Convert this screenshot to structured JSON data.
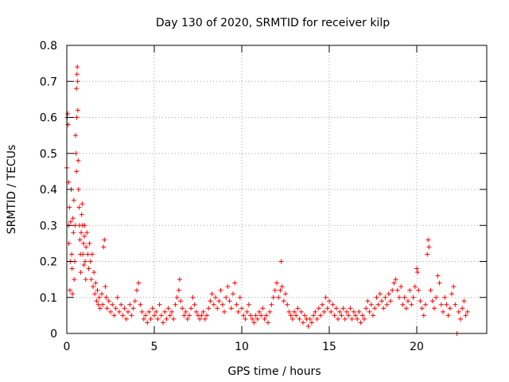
{
  "chart_data": {
    "type": "scatter",
    "title": "Day 130 of 2020, SRMTID for receiver kilp",
    "xlabel": "GPS time / hours",
    "ylabel": "SRMTID / TECUs",
    "xlim": [
      0,
      24
    ],
    "ylim": [
      0,
      0.8
    ],
    "xticks": [
      0,
      5,
      10,
      15,
      20
    ],
    "xtick_labels": [
      "0",
      "5",
      "10",
      "15",
      "20"
    ],
    "yticks": [
      0,
      0.1,
      0.2,
      0.3,
      0.4,
      0.5,
      0.6,
      0.7,
      0.8
    ],
    "ytick_labels": [
      "0",
      "0.1",
      "0.2",
      "0.3",
      "0.4",
      "0.5",
      "0.6",
      "0.7",
      "0.8"
    ],
    "grid": true,
    "marker": "+",
    "color": "#ff0000",
    "series": [
      {
        "name": "SRMTID",
        "points": [
          [
            0.0,
            0.46
          ],
          [
            0.02,
            0.6
          ],
          [
            0.05,
            0.61
          ],
          [
            0.07,
            0.58
          ],
          [
            0.1,
            0.42
          ],
          [
            0.1,
            0.3
          ],
          [
            0.12,
            0.25
          ],
          [
            0.15,
            0.35
          ],
          [
            0.18,
            0.12
          ],
          [
            0.2,
            0.2
          ],
          [
            0.22,
            0.31
          ],
          [
            0.25,
            0.4
          ],
          [
            0.28,
            0.22
          ],
          [
            0.3,
            0.18
          ],
          [
            0.32,
            0.11
          ],
          [
            0.35,
            0.32
          ],
          [
            0.38,
            0.28
          ],
          [
            0.4,
            0.37
          ],
          [
            0.42,
            0.15
          ],
          [
            0.45,
            0.2
          ],
          [
            0.48,
            0.3
          ],
          [
            0.5,
            0.55
          ],
          [
            0.52,
            0.5
          ],
          [
            0.55,
            0.45
          ],
          [
            0.55,
            0.68
          ],
          [
            0.57,
            0.6
          ],
          [
            0.58,
            0.72
          ],
          [
            0.6,
            0.74
          ],
          [
            0.62,
            0.7
          ],
          [
            0.63,
            0.62
          ],
          [
            0.65,
            0.48
          ],
          [
            0.67,
            0.4
          ],
          [
            0.7,
            0.35
          ],
          [
            0.72,
            0.3
          ],
          [
            0.75,
            0.26
          ],
          [
            0.78,
            0.22
          ],
          [
            0.8,
            0.17
          ],
          [
            0.82,
            0.28
          ],
          [
            0.85,
            0.33
          ],
          [
            0.88,
            0.36
          ],
          [
            0.9,
            0.3
          ],
          [
            0.92,
            0.22
          ],
          [
            0.95,
            0.25
          ],
          [
            0.98,
            0.19
          ],
          [
            1.0,
            0.27
          ],
          [
            1.02,
            0.3
          ],
          [
            1.05,
            0.2
          ],
          [
            1.08,
            0.15
          ],
          [
            1.1,
            0.24
          ],
          [
            1.15,
            0.28
          ],
          [
            1.2,
            0.22
          ],
          [
            1.25,
            0.18
          ],
          [
            1.3,
            0.25
          ],
          [
            1.35,
            0.2
          ],
          [
            1.4,
            0.15
          ],
          [
            1.45,
            0.22
          ],
          [
            1.5,
            0.13
          ],
          [
            1.55,
            0.17
          ],
          [
            1.6,
            0.11
          ],
          [
            1.65,
            0.14
          ],
          [
            1.7,
            0.09
          ],
          [
            1.75,
            0.12
          ],
          [
            1.8,
            0.08
          ],
          [
            1.85,
            0.1
          ],
          [
            1.9,
            0.07
          ],
          [
            2.0,
            0.11
          ],
          [
            2.05,
            0.08
          ],
          [
            2.1,
            0.24
          ],
          [
            2.15,
            0.26
          ],
          [
            2.2,
            0.13
          ],
          [
            2.25,
            0.1
          ],
          [
            2.3,
            0.07
          ],
          [
            2.4,
            0.09
          ],
          [
            2.5,
            0.06
          ],
          [
            2.6,
            0.08
          ],
          [
            2.7,
            0.05
          ],
          [
            2.8,
            0.07
          ],
          [
            2.9,
            0.1
          ],
          [
            3.0,
            0.06
          ],
          [
            3.1,
            0.08
          ],
          [
            3.2,
            0.05
          ],
          [
            3.3,
            0.07
          ],
          [
            3.4,
            0.04
          ],
          [
            3.5,
            0.06
          ],
          [
            3.6,
            0.08
          ],
          [
            3.7,
            0.05
          ],
          [
            3.8,
            0.07
          ],
          [
            3.9,
            0.09
          ],
          [
            4.0,
            0.12
          ],
          [
            4.1,
            0.14
          ],
          [
            4.2,
            0.08
          ],
          [
            4.3,
            0.06
          ],
          [
            4.4,
            0.04
          ],
          [
            4.5,
            0.05
          ],
          [
            4.6,
            0.03
          ],
          [
            4.7,
            0.06
          ],
          [
            4.8,
            0.04
          ],
          [
            4.9,
            0.07
          ],
          [
            5.0,
            0.05
          ],
          [
            5.1,
            0.06
          ],
          [
            5.2,
            0.04
          ],
          [
            5.3,
            0.08
          ],
          [
            5.4,
            0.05
          ],
          [
            5.5,
            0.03
          ],
          [
            5.6,
            0.06
          ],
          [
            5.7,
            0.04
          ],
          [
            5.8,
            0.07
          ],
          [
            5.9,
            0.05
          ],
          [
            6.0,
            0.06
          ],
          [
            6.1,
            0.04
          ],
          [
            6.2,
            0.08
          ],
          [
            6.3,
            0.1
          ],
          [
            6.4,
            0.12
          ],
          [
            6.45,
            0.15
          ],
          [
            6.5,
            0.09
          ],
          [
            6.6,
            0.07
          ],
          [
            6.7,
            0.05
          ],
          [
            6.8,
            0.06
          ],
          [
            6.9,
            0.04
          ],
          [
            7.0,
            0.05
          ],
          [
            7.1,
            0.07
          ],
          [
            7.2,
            0.1
          ],
          [
            7.3,
            0.08
          ],
          [
            7.4,
            0.06
          ],
          [
            7.5,
            0.05
          ],
          [
            7.6,
            0.04
          ],
          [
            7.7,
            0.05
          ],
          [
            7.8,
            0.06
          ],
          [
            7.9,
            0.04
          ],
          [
            8.0,
            0.05
          ],
          [
            8.1,
            0.07
          ],
          [
            8.2,
            0.09
          ],
          [
            8.3,
            0.11
          ],
          [
            8.4,
            0.08
          ],
          [
            8.5,
            0.1
          ],
          [
            8.6,
            0.07
          ],
          [
            8.7,
            0.09
          ],
          [
            8.8,
            0.12
          ],
          [
            8.9,
            0.08
          ],
          [
            9.0,
            0.06
          ],
          [
            9.1,
            0.1
          ],
          [
            9.2,
            0.13
          ],
          [
            9.3,
            0.09
          ],
          [
            9.4,
            0.07
          ],
          [
            9.5,
            0.11
          ],
          [
            9.6,
            0.14
          ],
          [
            9.7,
            0.08
          ],
          [
            9.8,
            0.06
          ],
          [
            9.9,
            0.1
          ],
          [
            10.0,
            0.07
          ],
          [
            10.1,
            0.05
          ],
          [
            10.2,
            0.04
          ],
          [
            10.3,
            0.06
          ],
          [
            10.4,
            0.08
          ],
          [
            10.5,
            0.05
          ],
          [
            10.6,
            0.04
          ],
          [
            10.7,
            0.03
          ],
          [
            10.8,
            0.05
          ],
          [
            10.9,
            0.04
          ],
          [
            11.0,
            0.06
          ],
          [
            11.1,
            0.05
          ],
          [
            11.2,
            0.07
          ],
          [
            11.3,
            0.04
          ],
          [
            11.4,
            0.05
          ],
          [
            11.5,
            0.03
          ],
          [
            11.6,
            0.06
          ],
          [
            11.7,
            0.08
          ],
          [
            11.8,
            0.1
          ],
          [
            11.9,
            0.12
          ],
          [
            12.0,
            0.14
          ],
          [
            12.1,
            0.1
          ],
          [
            12.2,
            0.12
          ],
          [
            12.25,
            0.2
          ],
          [
            12.3,
            0.13
          ],
          [
            12.4,
            0.09
          ],
          [
            12.5,
            0.11
          ],
          [
            12.6,
            0.08
          ],
          [
            12.7,
            0.06
          ],
          [
            12.8,
            0.05
          ],
          [
            12.9,
            0.04
          ],
          [
            13.0,
            0.06
          ],
          [
            13.1,
            0.05
          ],
          [
            13.2,
            0.07
          ],
          [
            13.3,
            0.04
          ],
          [
            13.4,
            0.06
          ],
          [
            13.5,
            0.03
          ],
          [
            13.6,
            0.05
          ],
          [
            13.7,
            0.04
          ],
          [
            13.8,
            0.02
          ],
          [
            13.9,
            0.04
          ],
          [
            14.0,
            0.03
          ],
          [
            14.1,
            0.05
          ],
          [
            14.2,
            0.06
          ],
          [
            14.3,
            0.04
          ],
          [
            14.4,
            0.07
          ],
          [
            14.5,
            0.05
          ],
          [
            14.6,
            0.08
          ],
          [
            14.7,
            0.06
          ],
          [
            14.8,
            0.1
          ],
          [
            14.9,
            0.07
          ],
          [
            15.0,
            0.09
          ],
          [
            15.1,
            0.06
          ],
          [
            15.2,
            0.08
          ],
          [
            15.3,
            0.05
          ],
          [
            15.4,
            0.07
          ],
          [
            15.5,
            0.04
          ],
          [
            15.6,
            0.06
          ],
          [
            15.7,
            0.05
          ],
          [
            15.8,
            0.07
          ],
          [
            15.9,
            0.04
          ],
          [
            16.0,
            0.06
          ],
          [
            16.1,
            0.05
          ],
          [
            16.2,
            0.07
          ],
          [
            16.3,
            0.04
          ],
          [
            16.4,
            0.06
          ],
          [
            16.5,
            0.05
          ],
          [
            16.6,
            0.04
          ],
          [
            16.7,
            0.06
          ],
          [
            16.8,
            0.03
          ],
          [
            16.9,
            0.05
          ],
          [
            17.0,
            0.04
          ],
          [
            17.1,
            0.07
          ],
          [
            17.2,
            0.09
          ],
          [
            17.3,
            0.06
          ],
          [
            17.4,
            0.08
          ],
          [
            17.5,
            0.05
          ],
          [
            17.6,
            0.07
          ],
          [
            17.7,
            0.1
          ],
          [
            17.8,
            0.08
          ],
          [
            17.9,
            0.11
          ],
          [
            18.0,
            0.09
          ],
          [
            18.1,
            0.07
          ],
          [
            18.2,
            0.1
          ],
          [
            18.3,
            0.08
          ],
          [
            18.4,
            0.11
          ],
          [
            18.5,
            0.09
          ],
          [
            18.6,
            0.12
          ],
          [
            18.7,
            0.14
          ],
          [
            18.8,
            0.15
          ],
          [
            18.9,
            0.12
          ],
          [
            19.0,
            0.1
          ],
          [
            19.1,
            0.13
          ],
          [
            19.2,
            0.08
          ],
          [
            19.3,
            0.1
          ],
          [
            19.4,
            0.07
          ],
          [
            19.5,
            0.09
          ],
          [
            19.6,
            0.12
          ],
          [
            19.7,
            0.08
          ],
          [
            19.8,
            0.1
          ],
          [
            19.9,
            0.13
          ],
          [
            20.0,
            0.18
          ],
          [
            20.05,
            0.17
          ],
          [
            20.1,
            0.12
          ],
          [
            20.2,
            0.09
          ],
          [
            20.3,
            0.07
          ],
          [
            20.4,
            0.05
          ],
          [
            20.5,
            0.08
          ],
          [
            20.6,
            0.22
          ],
          [
            20.65,
            0.26
          ],
          [
            20.7,
            0.24
          ],
          [
            20.8,
            0.12
          ],
          [
            20.9,
            0.09
          ],
          [
            21.0,
            0.07
          ],
          [
            21.1,
            0.1
          ],
          [
            21.2,
            0.16
          ],
          [
            21.3,
            0.14
          ],
          [
            21.4,
            0.08
          ],
          [
            21.5,
            0.06
          ],
          [
            21.6,
            0.1
          ],
          [
            21.7,
            0.08
          ],
          [
            21.8,
            0.05
          ],
          [
            21.9,
            0.07
          ],
          [
            22.0,
            0.11
          ],
          [
            22.1,
            0.13
          ],
          [
            22.2,
            0.08
          ],
          [
            22.3,
            0.0
          ],
          [
            22.4,
            0.06
          ],
          [
            22.5,
            0.04
          ],
          [
            22.6,
            0.07
          ],
          [
            22.7,
            0.09
          ],
          [
            22.8,
            0.05
          ],
          [
            22.9,
            0.06
          ]
        ]
      }
    ]
  }
}
